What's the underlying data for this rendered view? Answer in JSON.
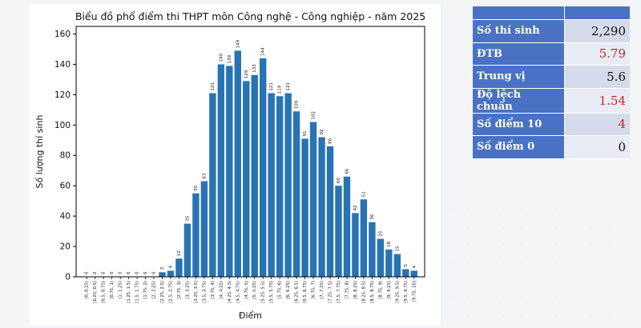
{
  "chart_data": {
    "type": "bar",
    "title": "Biểu đồ phổ điểm thi THPT môn Công nghệ - Công nghiệp - năm 2025",
    "xlabel": "Điểm",
    "ylabel": "Số lượng thí sinh",
    "ylim": [
      0,
      165
    ],
    "yticks": [
      0,
      20,
      40,
      60,
      80,
      100,
      120,
      140,
      160
    ],
    "grid": false,
    "categories": [
      "[0, 0.25)",
      "[0.25, 0.5)",
      "[0.5, 0.75)",
      "[0.75, 1)",
      "[1, 1.25)",
      "[1.25, 1.5)",
      "[1.5, 1.75)",
      "[1.75, 2)",
      "[2, 2.25)",
      "[2.25, 2.5)",
      "[2.5, 2.75)",
      "[2.75, 3)",
      "[3, 3.25)",
      "[3.25, 3.5)",
      "[3.5, 3.75)",
      "[3.75, 4)",
      "[4, 4.25)",
      "[4.25, 4.5)",
      "[4.5, 4.75)",
      "[4.75, 5)",
      "[5, 5.25)",
      "[5.25, 5.5)",
      "[5.5, 5.75)",
      "[5.75, 6)",
      "[6, 6.25)",
      "[6.25, 6.5)",
      "[6.5, 6.75)",
      "[6.75, 7)",
      "[7, 7.25)",
      "[7.25, 7.5)",
      "[7.5, 7.75)",
      "[7.75, 8)",
      "[8, 8.25)",
      "[8.25, 8.5)",
      "[8.5, 8.75)",
      "[8.75, 9)",
      "[9, 9.25)",
      "[9.25, 9.5)",
      "[9.5, 9.75)",
      "[9.75, 10]"
    ],
    "values": [
      0,
      0,
      0,
      0,
      0,
      0,
      0,
      0,
      0,
      3,
      4,
      12,
      35,
      55,
      63,
      121,
      140,
      139,
      149,
      129,
      133,
      144,
      121,
      119,
      121,
      109,
      91,
      102,
      92,
      86,
      60,
      66,
      42,
      51,
      36,
      25,
      18,
      15,
      5,
      4
    ],
    "bar_color": "#2873b3"
  },
  "stats": {
    "rows": [
      {
        "label": "Số thí sinh",
        "value": "2,290",
        "color": "#111111"
      },
      {
        "label": "ĐTB",
        "value": "5.79",
        "color": "#c0282e"
      },
      {
        "label": "Trung vị",
        "value": "5.6",
        "color": "#111111"
      },
      {
        "label": "Độ lệch chuẩn",
        "value": "1.54",
        "color": "#c0282e"
      },
      {
        "label": "Số điểm 10",
        "value": "4",
        "color": "#c0282e"
      },
      {
        "label": "Số điểm 0",
        "value": "0",
        "color": "#111111"
      }
    ]
  }
}
